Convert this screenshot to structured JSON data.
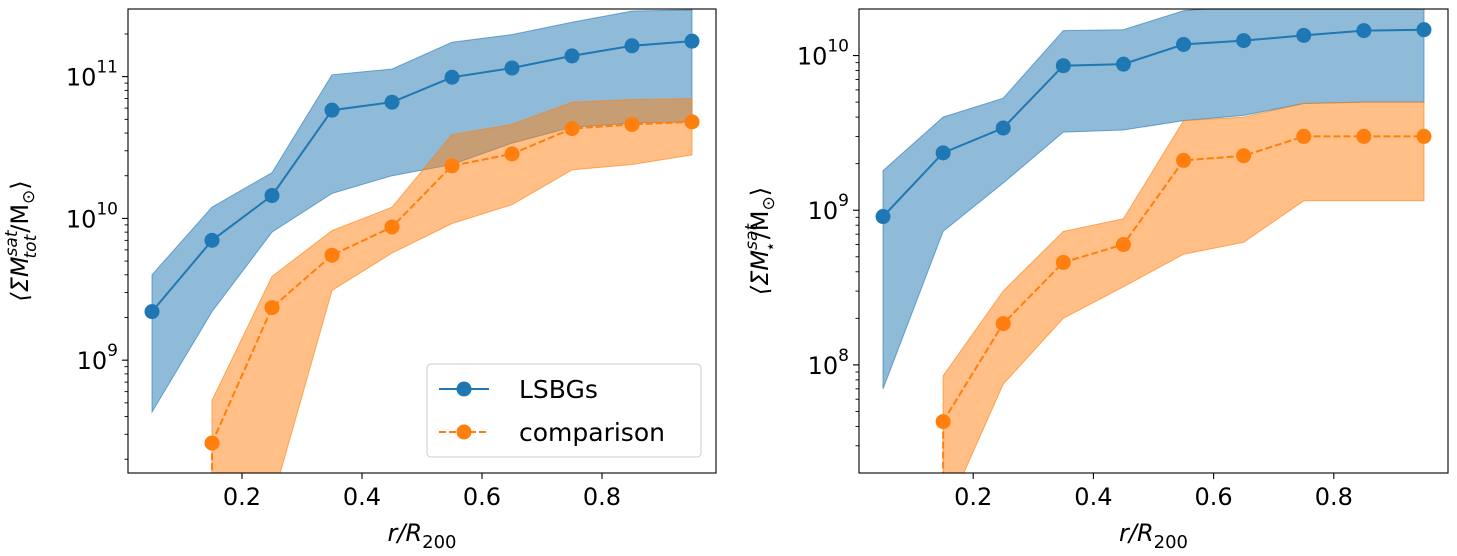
{
  "chart_data": [
    {
      "type": "line",
      "yscale": "log",
      "xlabel_main": "r/R",
      "xlabel_sub": "200",
      "ylabel": {
        "open": "⟨ΣM",
        "sup": "sat",
        "sub": "tot",
        "close": "/M",
        "sun": "⊙",
        "end": "⟩"
      },
      "xlim": [
        0.01,
        0.99
      ],
      "ylim": [
        160000000.0,
        300000000000.0
      ],
      "x_ticks": [
        0.2,
        0.4,
        0.6,
        0.8
      ],
      "x_tick_labels": [
        "0.2",
        "0.4",
        "0.6",
        "0.8"
      ],
      "y_ticks": [
        {
          "value": 1000000000.0,
          "base": "10",
          "exp": "9"
        },
        {
          "value": 10000000000.0,
          "base": "10",
          "exp": "10"
        },
        {
          "value": 100000000000.0,
          "base": "10",
          "exp": "11"
        }
      ],
      "legend": {
        "position": "lower right",
        "entries": [
          "LSBGs",
          "comparison"
        ]
      },
      "series": [
        {
          "name": "LSBGs",
          "color": "#1f77b4",
          "style": "solid",
          "x": [
            0.05,
            0.15,
            0.25,
            0.35,
            0.45,
            0.55,
            0.65,
            0.75,
            0.85,
            0.95
          ],
          "y": [
            2200000000.0,
            7000000000.0,
            14500000000.0,
            58000000000.0,
            66000000000.0,
            99000000000.0,
            115000000000.0,
            140000000000.0,
            165000000000.0,
            178000000000.0
          ],
          "lower": [
            430000000.0,
            2200000000.0,
            8000000000.0,
            15000000000.0,
            20000000000.0,
            24000000000.0,
            34000000000.0,
            44000000000.0,
            47000000000.0,
            48000000000.0
          ],
          "upper": [
            4000000000.0,
            12000000000.0,
            21000000000.0,
            103000000000.0,
            113000000000.0,
            175000000000.0,
            198000000000.0,
            242000000000.0,
            290000000000.0,
            295000000000.0
          ]
        },
        {
          "name": "comparison",
          "color": "#ff7f0e",
          "style": "dashed",
          "x": [
            0.15,
            0.25,
            0.35,
            0.45,
            0.55,
            0.65,
            0.75,
            0.85,
            0.95
          ],
          "y": [
            260000000.0,
            2350000000.0,
            5500000000.0,
            8700000000.0,
            23500000000.0,
            28500000000.0,
            43000000000.0,
            46000000000.0,
            48000000000.0
          ],
          "lower": [
            100000000.0,
            100000000.0,
            3100000000.0,
            5700000000.0,
            9200000000.0,
            12500000000.0,
            22000000000.0,
            24000000000.0,
            28000000000.0
          ],
          "upper": [
            520000000.0,
            3900000000.0,
            8200000000.0,
            12000000000.0,
            39000000000.0,
            46000000000.0,
            66000000000.0,
            69000000000.0,
            70000000000.0
          ]
        }
      ]
    },
    {
      "type": "line",
      "yscale": "log",
      "xlabel_main": "r/R",
      "xlabel_sub": "200",
      "ylabel": {
        "open": "⟨ΣM",
        "sup": "sat",
        "sub": "⋆",
        "close": "/M",
        "sun": "⊙",
        "end": "⟩"
      },
      "xlim": [
        0.01,
        0.99
      ],
      "ylim": [
        20000000.0,
        20000000000.0
      ],
      "x_ticks": [
        0.2,
        0.4,
        0.6,
        0.8
      ],
      "x_tick_labels": [
        "0.2",
        "0.4",
        "0.6",
        "0.8"
      ],
      "y_ticks": [
        {
          "value": 100000000.0,
          "base": "10",
          "exp": "8"
        },
        {
          "value": 1000000000.0,
          "base": "10",
          "exp": "9"
        },
        {
          "value": 10000000000.0,
          "base": "10",
          "exp": "10"
        }
      ],
      "series": [
        {
          "name": "LSBGs",
          "color": "#1f77b4",
          "style": "solid",
          "x": [
            0.05,
            0.15,
            0.25,
            0.35,
            0.45,
            0.55,
            0.65,
            0.75,
            0.85,
            0.95
          ],
          "y": [
            910000000.0,
            2350000000.0,
            3400000000.0,
            8600000000.0,
            8800000000.0,
            11800000000.0,
            12500000000.0,
            13500000000.0,
            14500000000.0,
            14700000000.0
          ],
          "lower": [
            70000000.0,
            730000000.0,
            1500000000.0,
            3200000000.0,
            3300000000.0,
            3800000000.0,
            4100000000.0,
            4900000000.0,
            5000000000.0,
            5000000000.0
          ],
          "upper": [
            1800000000.0,
            4000000000.0,
            5300000000.0,
            14500000000.0,
            14700000000.0,
            19500000000.0,
            21000000000.0,
            25000000000.0,
            25000000000.0,
            25000000000.0
          ]
        },
        {
          "name": "comparison",
          "color": "#ff7f0e",
          "style": "dashed",
          "x": [
            0.15,
            0.25,
            0.35,
            0.45,
            0.55,
            0.65,
            0.75,
            0.85,
            0.95
          ],
          "y": [
            43000000.0,
            185000000.0,
            460000000.0,
            600000000.0,
            2100000000.0,
            2250000000.0,
            3000000000.0,
            3000000000.0,
            3000000000.0
          ],
          "lower": [
            10000000.0,
            75000000.0,
            200000000.0,
            320000000.0,
            520000000.0,
            620000000.0,
            1150000000.0,
            1150000000.0,
            1150000000.0
          ],
          "upper": [
            85000000.0,
            300000000.0,
            730000000.0,
            880000000.0,
            3800000000.0,
            4000000000.0,
            4900000000.0,
            5000000000.0,
            5000000000.0
          ]
        }
      ]
    }
  ]
}
